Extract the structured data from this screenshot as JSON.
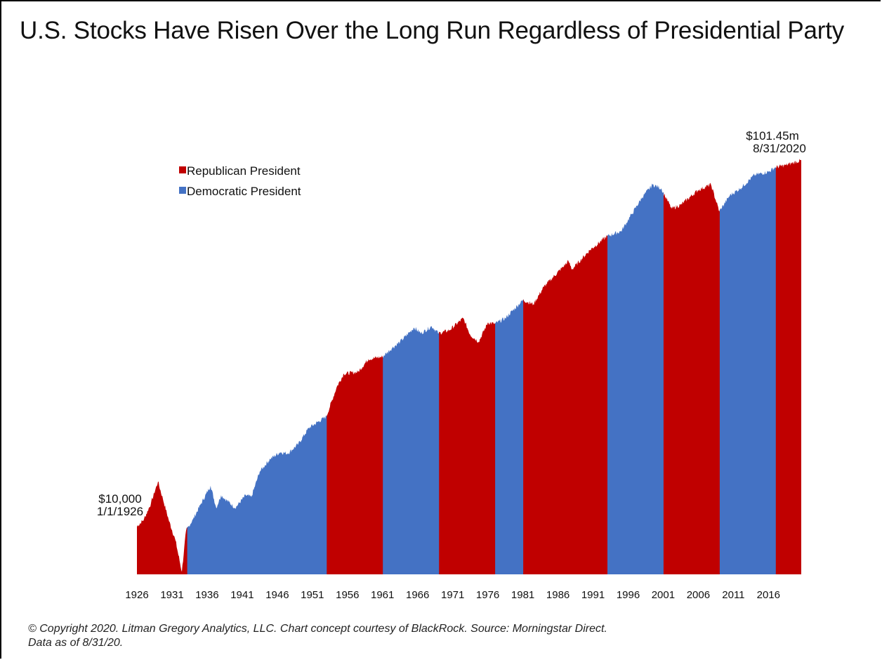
{
  "chart_data": {
    "type": "area",
    "title": "U.S. Stocks Have Risen Over the Long Run Regardless of Presidential Party",
    "xlabel": "",
    "ylabel": "",
    "scale": "log",
    "legend": {
      "placement": "top-left",
      "entries": [
        {
          "name": "Republican President",
          "color": "#c00000"
        },
        {
          "name": "Democratic President",
          "color": "#4472c4"
        }
      ]
    },
    "colors": {
      "Republican": "#c00000",
      "Democratic": "#4472c4"
    },
    "x_range": [
      1926.0,
      2020.67
    ],
    "x_ticks": [
      "1926",
      "1931",
      "1936",
      "1941",
      "1946",
      "1951",
      "1956",
      "1961",
      "1966",
      "1971",
      "1976",
      "1981",
      "1986",
      "1991",
      "1996",
      "2001",
      "2006",
      "2011",
      "2016"
    ],
    "x_tick_values": [
      1926,
      1931,
      1936,
      1941,
      1946,
      1951,
      1956,
      1961,
      1966,
      1971,
      1976,
      1981,
      1986,
      1991,
      1996,
      2001,
      2006,
      2011,
      2016
    ],
    "y_range_usd": [
      3000,
      102000000
    ],
    "values_usd": {
      "x": [
        1926.0,
        1927.0,
        1928.0,
        1929.0,
        1929.7,
        1930.5,
        1931.5,
        1932.4,
        1933.0,
        1934.0,
        1935.0,
        1936.5,
        1937.3,
        1938.0,
        1940.0,
        1941.5,
        1942.3,
        1943.5,
        1945.0,
        1946.4,
        1947.5,
        1949.0,
        1950.5,
        1953.0,
        1954.5,
        1955.5,
        1957.5,
        1959.0,
        1961.0,
        1962.4,
        1963.5,
        1965.5,
        1966.5,
        1968.0,
        1969.0,
        1970.5,
        1972.5,
        1973.5,
        1974.7,
        1976.0,
        1977.0,
        1978.5,
        1981.0,
        1982.5,
        1984.0,
        1987.5,
        1988.0,
        1990.5,
        1993.0,
        1995.0,
        1996.5,
        1998.0,
        1999.5,
        2000.7,
        2002.2,
        2003.5,
        2006.0,
        2007.8,
        2009.0,
        2010.5,
        2012.0,
        2014.0,
        2016.0,
        2017.0,
        2018.5,
        2020.67
      ],
      "y": [
        10000,
        12000,
        18000,
        31000,
        20000,
        12000,
        7000,
        3200,
        9000,
        12000,
        17000,
        28000,
        16000,
        22000,
        16000,
        22000,
        21000,
        40000,
        55000,
        65000,
        63000,
        80000,
        120000,
        160000,
        340000,
        470000,
        490000,
        680000,
        720000,
        900000,
        1050000,
        1500000,
        1300000,
        1550000,
        1300000,
        1400000,
        1900000,
        1250000,
        1050000,
        1700000,
        1650000,
        1900000,
        3000000,
        2700000,
        4200000,
        8000000,
        6500000,
        10500000,
        15000000,
        17000000,
        26000000,
        40000000,
        55000000,
        50000000,
        30000000,
        33000000,
        48000000,
        55000000,
        28000000,
        42000000,
        50000000,
        70000000,
        76000000,
        85000000,
        90000000,
        101450000
      ]
    },
    "terms": [
      {
        "party": "Republican",
        "start": 1926.0,
        "end": 1933.17
      },
      {
        "party": "Democratic",
        "start": 1933.17,
        "end": 1953.05
      },
      {
        "party": "Republican",
        "start": 1953.05,
        "end": 1961.05
      },
      {
        "party": "Democratic",
        "start": 1961.05,
        "end": 1969.05
      },
      {
        "party": "Republican",
        "start": 1969.05,
        "end": 1977.05
      },
      {
        "party": "Democratic",
        "start": 1977.05,
        "end": 1981.05
      },
      {
        "party": "Republican",
        "start": 1981.05,
        "end": 1993.05
      },
      {
        "party": "Democratic",
        "start": 1993.05,
        "end": 2001.05
      },
      {
        "party": "Republican",
        "start": 2001.05,
        "end": 2009.05
      },
      {
        "party": "Democratic",
        "start": 2009.05,
        "end": 2017.05
      },
      {
        "party": "Republican",
        "start": 2017.05,
        "end": 2020.67
      }
    ],
    "annotations": {
      "start": {
        "value": "$10,000",
        "date": "1/1/1926"
      },
      "end": {
        "value": "$101.45m",
        "date": "8/31/2020"
      }
    }
  },
  "footnote": {
    "line1": "© Copyright 2020. Litman Gregory Analytics, LLC. Chart concept courtesy of BlackRock. Source: Morningstar Direct.",
    "line2": "Data as of 8/31/20."
  }
}
